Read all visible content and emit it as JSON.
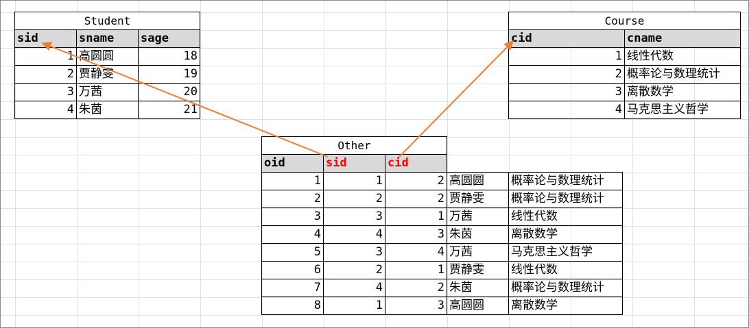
{
  "colors": {
    "arrow": "#ed7d31",
    "fk_header": "#ff0000",
    "header_bg": "#d9d9d9"
  },
  "student": {
    "title": "Student",
    "headers": [
      "sid",
      "sname",
      "sage"
    ],
    "rows": [
      [
        "1",
        "高圆圆",
        "18"
      ],
      [
        "2",
        "贾静雯",
        "19"
      ],
      [
        "3",
        "万茜",
        "20"
      ],
      [
        "4",
        "朱茵",
        "21"
      ]
    ]
  },
  "course": {
    "title": "Course",
    "headers": [
      "cid",
      "cname"
    ],
    "rows": [
      [
        "1",
        "线性代数"
      ],
      [
        "2",
        "概率论与数理统计"
      ],
      [
        "3",
        "离散数学"
      ],
      [
        "4",
        "马克思主义哲学"
      ]
    ]
  },
  "other": {
    "title": "Other",
    "headers": [
      "oid",
      "sid",
      "cid"
    ],
    "rows": [
      [
        "1",
        "1",
        "2",
        "高圆圆",
        "概率论与数理统计"
      ],
      [
        "2",
        "2",
        "2",
        "贾静雯",
        "概率论与数理统计"
      ],
      [
        "3",
        "3",
        "1",
        "万茜",
        "线性代数"
      ],
      [
        "4",
        "4",
        "3",
        "朱茵",
        "离散数学"
      ],
      [
        "5",
        "3",
        "4",
        "万茜",
        "马克思主义哲学"
      ],
      [
        "6",
        "2",
        "1",
        "贾静雯",
        "线性代数"
      ],
      [
        "7",
        "4",
        "2",
        "朱茵",
        "概率论与数理统计"
      ],
      [
        "8",
        "1",
        "3",
        "高圆圆",
        "离散数学"
      ]
    ]
  }
}
